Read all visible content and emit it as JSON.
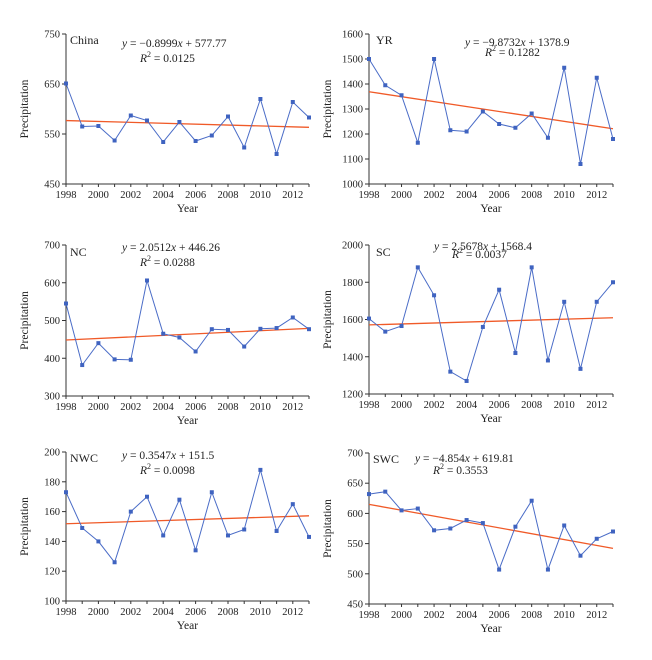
{
  "chart_data": [
    {
      "type": "line",
      "label": "China",
      "equation": {
        "y": "y",
        "rhs_prefix": " = −0.8999",
        "x": "x",
        "rhs_suffix": " + 577.77"
      },
      "r2": {
        "r": "R",
        "exp": "2",
        "value": " = 0.0125"
      },
      "xlabel": "Year",
      "ylabel": "Precipitation",
      "xlim": [
        1998,
        2013
      ],
      "ylim": [
        450,
        750
      ],
      "yticks": [
        450,
        550,
        650,
        750
      ],
      "xticks": [
        1998,
        2000,
        2002,
        2004,
        2006,
        2008,
        2010,
        2012
      ],
      "x": [
        1998,
        1999,
        2000,
        2001,
        2002,
        2003,
        2004,
        2005,
        2006,
        2007,
        2008,
        2009,
        2010,
        2011,
        2012,
        2013
      ],
      "values": [
        651,
        565,
        566,
        537,
        587,
        577,
        534,
        574,
        536,
        547,
        585,
        523,
        620,
        510,
        614,
        583
      ],
      "trend": {
        "slope": -0.8999,
        "intercept": 577.77
      }
    },
    {
      "type": "line",
      "label": "YR",
      "equation": {
        "y": "y",
        "rhs_prefix": " = −9.8732",
        "x": "x",
        "rhs_suffix": " + 1378.9"
      },
      "r2": {
        "r": "R",
        "exp": "2",
        "value": " = 0.1282"
      },
      "xlabel": "Year",
      "ylabel": "Precipitation",
      "xlim": [
        1998,
        2013
      ],
      "ylim": [
        1000,
        1600
      ],
      "yticks": [
        1000,
        1100,
        1200,
        1300,
        1400,
        1500,
        1600
      ],
      "xticks": [
        1998,
        2000,
        2002,
        2004,
        2006,
        2008,
        2010,
        2012
      ],
      "x": [
        1998,
        1999,
        2000,
        2001,
        2002,
        2003,
        2004,
        2005,
        2006,
        2007,
        2008,
        2009,
        2010,
        2011,
        2012,
        2013
      ],
      "values": [
        1500,
        1395,
        1355,
        1165,
        1500,
        1215,
        1210,
        1290,
        1240,
        1225,
        1282,
        1185,
        1465,
        1080,
        1425,
        1180
      ],
      "trend": {
        "slope": -9.8732,
        "intercept": 1378.9
      }
    },
    {
      "type": "line",
      "label": "NC",
      "equation": {
        "y": "y",
        "rhs_prefix": " = 2.0512",
        "x": "x",
        "rhs_suffix": " + 446.26"
      },
      "r2": {
        "r": "R",
        "exp": "2",
        "value": " = 0.0288"
      },
      "xlabel": "Year",
      "ylabel": "Precipitation",
      "xlim": [
        1998,
        2013
      ],
      "ylim": [
        300,
        700
      ],
      "yticks": [
        300,
        400,
        500,
        600,
        700
      ],
      "xticks": [
        1998,
        2000,
        2002,
        2004,
        2006,
        2008,
        2010,
        2012
      ],
      "x": [
        1998,
        1999,
        2000,
        2001,
        2002,
        2003,
        2004,
        2005,
        2006,
        2007,
        2008,
        2009,
        2010,
        2011,
        2012,
        2013
      ],
      "values": [
        545,
        382,
        440,
        397,
        396,
        606,
        465,
        455,
        418,
        477,
        475,
        431,
        478,
        480,
        508,
        477
      ],
      "trend": {
        "slope": 2.0512,
        "intercept": 446.26
      }
    },
    {
      "type": "line",
      "label": "SC",
      "equation": {
        "y": "y",
        "rhs_prefix": " = 2.5678",
        "x": "x",
        "rhs_suffix": " + 1568.4"
      },
      "r2": {
        "r": "R",
        "exp": "2",
        "value": " = 0.0037"
      },
      "xlabel": "Year",
      "ylabel": "Precipitation",
      "xlim": [
        1998,
        2013
      ],
      "ylim": [
        1200,
        2000
      ],
      "yticks": [
        1200,
        1400,
        1600,
        1800,
        2000
      ],
      "xticks": [
        1998,
        2000,
        2002,
        2004,
        2006,
        2008,
        2010,
        2012
      ],
      "x": [
        1998,
        1999,
        2000,
        2001,
        2002,
        2003,
        2004,
        2005,
        2006,
        2007,
        2008,
        2009,
        2010,
        2011,
        2012,
        2013
      ],
      "values": [
        1605,
        1535,
        1565,
        1880,
        1730,
        1320,
        1270,
        1560,
        1760,
        1420,
        1880,
        1380,
        1695,
        1335,
        1695,
        1800
      ],
      "trend": {
        "slope": 2.5678,
        "intercept": 1568.4
      }
    },
    {
      "type": "line",
      "label": "NWC",
      "equation": {
        "y": "y",
        "rhs_prefix": " = 0.3547",
        "x": "x",
        "rhs_suffix": " + 151.5"
      },
      "r2": {
        "r": "R",
        "exp": "2",
        "value": " = 0.0098"
      },
      "xlabel": "Year",
      "ylabel": "Precipitation",
      "xlim": [
        1998,
        2013
      ],
      "ylim": [
        100,
        200
      ],
      "yticks": [
        100,
        120,
        140,
        160,
        180,
        200
      ],
      "xticks": [
        1998,
        2000,
        2002,
        2004,
        2006,
        2008,
        2010,
        2012
      ],
      "x": [
        1998,
        1999,
        2000,
        2001,
        2002,
        2003,
        2004,
        2005,
        2006,
        2007,
        2008,
        2009,
        2010,
        2011,
        2012,
        2013
      ],
      "values": [
        173,
        149,
        140,
        126,
        160,
        170,
        144,
        168,
        134,
        173,
        144,
        148,
        188,
        147,
        165,
        143
      ],
      "trend": {
        "slope": 0.3547,
        "intercept": 151.5
      }
    },
    {
      "type": "line",
      "label": "SWC",
      "equation": {
        "y": "y",
        "rhs_prefix": " = −4.854",
        "x": "x",
        "rhs_suffix": " + 619.81"
      },
      "r2": {
        "r": "R",
        "exp": "2",
        "value": " = 0.3553"
      },
      "xlabel": "Year",
      "ylabel": "Precipitation",
      "xlim": [
        1998,
        2013
      ],
      "ylim": [
        450,
        700
      ],
      "yticks": [
        450,
        500,
        550,
        600,
        650,
        700
      ],
      "xticks": [
        1998,
        2000,
        2002,
        2004,
        2006,
        2008,
        2010,
        2012
      ],
      "x": [
        1998,
        1999,
        2000,
        2001,
        2002,
        2003,
        2004,
        2005,
        2006,
        2007,
        2008,
        2009,
        2010,
        2011,
        2012,
        2013
      ],
      "values": [
        632,
        636,
        605,
        608,
        572,
        575,
        589,
        584,
        507,
        578,
        621,
        507,
        580,
        530,
        558,
        570
      ],
      "trend": {
        "slope": -4.854,
        "intercept": 619.81
      }
    }
  ],
  "colors": {
    "series": "#4a6cc7",
    "marker": "#3f63c0",
    "trend": "#f05a28",
    "axis": "#333333"
  }
}
